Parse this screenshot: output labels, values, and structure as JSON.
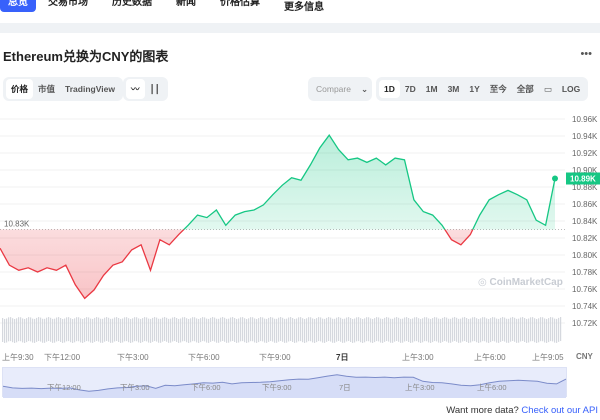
{
  "nav": {
    "items": [
      "总览",
      "交易市场",
      "历史数据",
      "新闻",
      "价格估算",
      "更多信息"
    ],
    "active": 0
  },
  "title": "Ethereum兑换为CNY的图表",
  "more_icon": "ellipsis-icon",
  "type_tabs": [
    "价格",
    "市值",
    "TradingView"
  ],
  "chart_style": {
    "line_icon": "line-chart-icon",
    "candle_icon": "candlestick-icon"
  },
  "compare": "Compare",
  "ranges": [
    "1D",
    "7D",
    "1M",
    "3M",
    "1Y",
    "至今",
    "全部"
  ],
  "calendar_icon": "calendar-icon",
  "log": "LOG",
  "watermark": "CoinMarketCap",
  "chart_data": {
    "type": "line",
    "currency": "CNY",
    "ylim": [
      10.71,
      10.97
    ],
    "yticks": [
      "10.96K",
      "10.94K",
      "10.92K",
      "10.90K",
      "10.88K",
      "10.86K",
      "10.84K",
      "10.82K",
      "10.80K",
      "10.78K",
      "10.76K",
      "10.74K",
      "10.72K"
    ],
    "baseline": 10.83,
    "baseline_label": "10.83K",
    "current_label": "10.89K",
    "xticks": [
      "上午9:30",
      "下午12:00",
      "下午3:00",
      "下午6:00",
      "下午9:00",
      "7日",
      "上午3:00",
      "上午6:00",
      "上午9:05"
    ],
    "navigator_ticks": [
      "下午12:00",
      "下午3:00",
      "下午6:00",
      "下午9:00",
      "7日",
      "上午3:00",
      "上午6:00"
    ],
    "values": [
      10.808,
      10.788,
      10.782,
      10.785,
      10.78,
      10.785,
      10.782,
      10.788,
      10.765,
      10.749,
      10.759,
      10.776,
      10.788,
      10.792,
      10.806,
      10.812,
      10.782,
      10.818,
      10.812,
      10.824,
      10.835,
      10.847,
      10.844,
      10.853,
      10.835,
      10.847,
      10.851,
      10.853,
      10.859,
      10.871,
      10.882,
      10.891,
      10.888,
      10.906,
      10.926,
      10.941,
      10.924,
      10.912,
      10.914,
      10.909,
      10.914,
      10.906,
      10.914,
      10.912,
      10.865,
      10.851,
      10.847,
      10.835,
      10.818,
      10.812,
      10.824,
      10.847,
      10.865,
      10.871,
      10.876,
      10.871,
      10.865,
      10.841,
      10.835,
      10.89
    ],
    "colors": {
      "up": "#16c784",
      "down": "#ea3943"
    }
  },
  "footer": {
    "text": "Want more data?",
    "link": "Check out our API"
  }
}
